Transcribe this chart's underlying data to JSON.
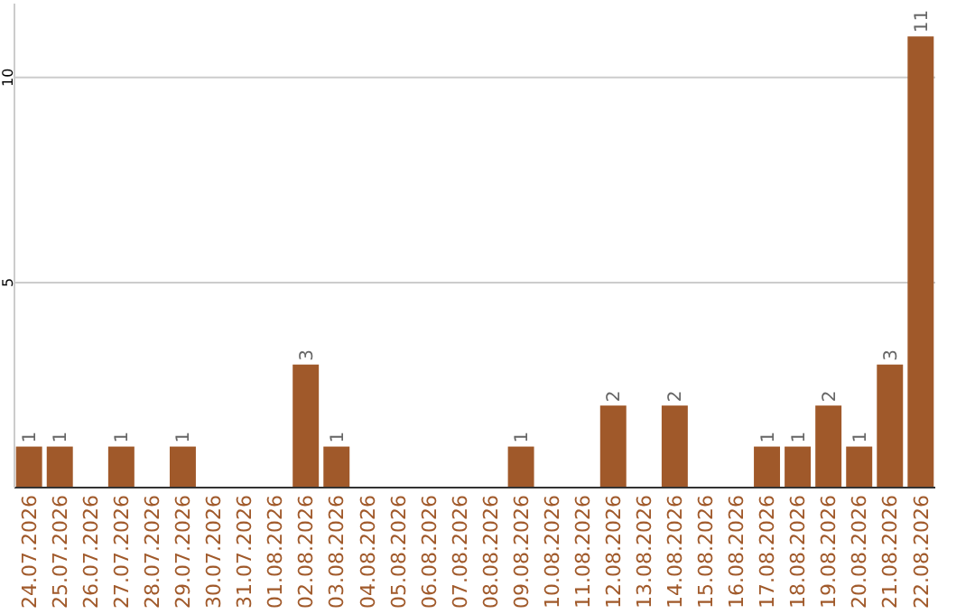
{
  "chart_data": {
    "type": "bar",
    "categories": [
      "24.07.2026",
      "25.07.2026",
      "26.07.2026",
      "27.07.2026",
      "28.07.2026",
      "29.07.2026",
      "30.07.2026",
      "31.07.2026",
      "01.08.2026",
      "02.08.2026",
      "03.08.2026",
      "04.08.2026",
      "05.08.2026",
      "06.08.2026",
      "07.08.2026",
      "08.08.2026",
      "09.08.2026",
      "10.08.2026",
      "11.08.2026",
      "12.08.2026",
      "13.08.2026",
      "14.08.2026",
      "15.08.2026",
      "16.08.2026",
      "17.08.2026",
      "18.08.2026",
      "19.08.2026",
      "20.08.2026",
      "21.08.2026",
      "22.08.2026"
    ],
    "values": [
      1,
      1,
      0,
      1,
      0,
      1,
      0,
      0,
      0,
      3,
      1,
      0,
      0,
      0,
      0,
      0,
      1,
      0,
      0,
      2,
      0,
      2,
      0,
      0,
      1,
      1,
      2,
      1,
      3,
      11
    ],
    "value_labels": [
      "1",
      "1",
      null,
      "1",
      null,
      "1",
      null,
      null,
      null,
      "3",
      "1",
      null,
      null,
      null,
      null,
      null,
      "1",
      null,
      null,
      "2",
      null,
      "2",
      null,
      null,
      "1",
      "1",
      "2",
      "1",
      "3",
      "11"
    ],
    "color": "#a0592a",
    "ylim": [
      0,
      11.8
    ],
    "yticks": [
      5,
      10
    ],
    "grid": "y"
  }
}
